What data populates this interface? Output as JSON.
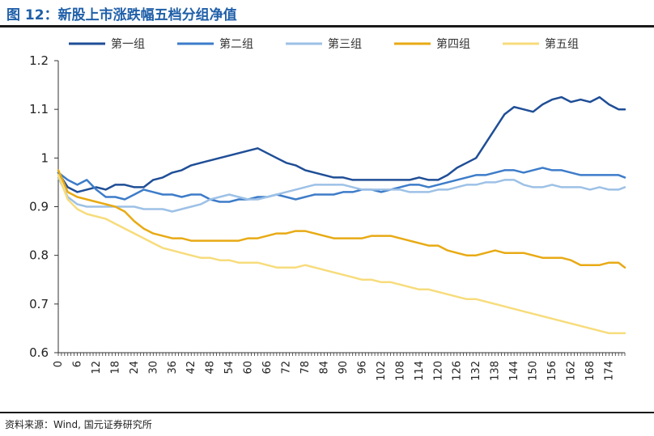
{
  "header": {
    "title": "图 12：新股上市涨跌幅五档分组净值"
  },
  "footer": {
    "source": "资料来源：Wind, 国元证券研究所"
  },
  "chart_data": {
    "type": "line",
    "title": "图 12：新股上市涨跌幅五档分组净值",
    "xlabel": "",
    "ylabel": "",
    "xlim": [
      0,
      179
    ],
    "ylim": [
      0.6,
      1.2
    ],
    "y_ticks": [
      0.6,
      0.7,
      0.8,
      0.9,
      1.0,
      1.1,
      1.2
    ],
    "y_tick_labels": [
      "0.6",
      "0.7",
      "0.8",
      "0.9",
      "1",
      "1.1",
      "1.2"
    ],
    "x_ticks": [
      0,
      6,
      12,
      18,
      24,
      30,
      36,
      42,
      48,
      54,
      60,
      66,
      72,
      78,
      84,
      90,
      96,
      102,
      108,
      114,
      120,
      126,
      132,
      138,
      144,
      150,
      156,
      162,
      168,
      174
    ],
    "x_tick_labels": [
      "0",
      "6",
      "12",
      "18",
      "24",
      "30",
      "36",
      "42",
      "48",
      "54",
      "60",
      "66",
      "72",
      "78",
      "84",
      "90",
      "96",
      "102",
      "108",
      "114",
      "120",
      "126",
      "132",
      "138",
      "144",
      "150",
      "156",
      "162",
      "168",
      "174"
    ],
    "legend_position": "top",
    "grid": false,
    "series": [
      {
        "name": "第一组",
        "color": "#1f4e96",
        "x": [
          0,
          3,
          6,
          9,
          12,
          15,
          18,
          21,
          24,
          27,
          30,
          33,
          36,
          39,
          42,
          45,
          48,
          51,
          54,
          57,
          60,
          63,
          66,
          69,
          72,
          75,
          78,
          81,
          84,
          87,
          90,
          93,
          96,
          99,
          102,
          105,
          108,
          111,
          114,
          117,
          120,
          123,
          126,
          129,
          132,
          135,
          138,
          141,
          144,
          147,
          150,
          153,
          156,
          159,
          162,
          165,
          168,
          171,
          174,
          177,
          179
        ],
        "values": [
          0.97,
          0.94,
          0.93,
          0.935,
          0.94,
          0.935,
          0.945,
          0.945,
          0.94,
          0.94,
          0.955,
          0.96,
          0.97,
          0.975,
          0.985,
          0.99,
          0.995,
          1.0,
          1.005,
          1.01,
          1.015,
          1.02,
          1.01,
          1.0,
          0.99,
          0.985,
          0.975,
          0.97,
          0.965,
          0.96,
          0.96,
          0.955,
          0.955,
          0.955,
          0.955,
          0.955,
          0.955,
          0.955,
          0.96,
          0.955,
          0.955,
          0.965,
          0.98,
          0.99,
          1.0,
          1.03,
          1.06,
          1.09,
          1.105,
          1.1,
          1.095,
          1.11,
          1.12,
          1.125,
          1.115,
          1.12,
          1.115,
          1.125,
          1.11,
          1.1,
          1.1
        ]
      },
      {
        "name": "第二组",
        "color": "#3d7cc9",
        "x": [
          0,
          3,
          6,
          9,
          12,
          15,
          18,
          21,
          24,
          27,
          30,
          33,
          36,
          39,
          42,
          45,
          48,
          51,
          54,
          57,
          60,
          63,
          66,
          69,
          72,
          75,
          78,
          81,
          84,
          87,
          90,
          93,
          96,
          99,
          102,
          105,
          108,
          111,
          114,
          117,
          120,
          123,
          126,
          129,
          132,
          135,
          138,
          141,
          144,
          147,
          150,
          153,
          156,
          159,
          162,
          165,
          168,
          171,
          174,
          177,
          179
        ],
        "values": [
          0.97,
          0.955,
          0.945,
          0.955,
          0.935,
          0.92,
          0.92,
          0.915,
          0.925,
          0.935,
          0.93,
          0.925,
          0.925,
          0.92,
          0.925,
          0.925,
          0.915,
          0.91,
          0.91,
          0.915,
          0.915,
          0.92,
          0.92,
          0.925,
          0.92,
          0.915,
          0.92,
          0.925,
          0.925,
          0.925,
          0.93,
          0.93,
          0.935,
          0.935,
          0.93,
          0.935,
          0.94,
          0.945,
          0.945,
          0.94,
          0.945,
          0.95,
          0.955,
          0.96,
          0.965,
          0.965,
          0.97,
          0.975,
          0.975,
          0.97,
          0.975,
          0.98,
          0.975,
          0.975,
          0.97,
          0.965,
          0.965,
          0.965,
          0.965,
          0.965,
          0.96
        ]
      },
      {
        "name": "第三组",
        "color": "#9dc1e6",
        "x": [
          0,
          3,
          6,
          9,
          12,
          15,
          18,
          21,
          24,
          27,
          30,
          33,
          36,
          39,
          42,
          45,
          48,
          51,
          54,
          57,
          60,
          63,
          66,
          69,
          72,
          75,
          78,
          81,
          84,
          87,
          90,
          93,
          96,
          99,
          102,
          105,
          108,
          111,
          114,
          117,
          120,
          123,
          126,
          129,
          132,
          135,
          138,
          141,
          144,
          147,
          150,
          153,
          156,
          159,
          162,
          165,
          168,
          171,
          174,
          177,
          179
        ],
        "values": [
          0.96,
          0.92,
          0.905,
          0.9,
          0.9,
          0.9,
          0.9,
          0.9,
          0.9,
          0.895,
          0.895,
          0.895,
          0.89,
          0.895,
          0.9,
          0.905,
          0.915,
          0.92,
          0.925,
          0.92,
          0.915,
          0.915,
          0.92,
          0.925,
          0.93,
          0.935,
          0.94,
          0.945,
          0.945,
          0.945,
          0.945,
          0.94,
          0.935,
          0.935,
          0.935,
          0.935,
          0.935,
          0.93,
          0.93,
          0.93,
          0.935,
          0.935,
          0.94,
          0.945,
          0.945,
          0.95,
          0.95,
          0.955,
          0.955,
          0.945,
          0.94,
          0.94,
          0.945,
          0.94,
          0.94,
          0.94,
          0.935,
          0.94,
          0.935,
          0.935,
          0.94
        ]
      },
      {
        "name": "第四组",
        "color": "#e8aa14",
        "x": [
          0,
          3,
          6,
          9,
          12,
          15,
          18,
          21,
          24,
          27,
          30,
          33,
          36,
          39,
          42,
          45,
          48,
          51,
          54,
          57,
          60,
          63,
          66,
          69,
          72,
          75,
          78,
          81,
          84,
          87,
          90,
          93,
          96,
          99,
          102,
          105,
          108,
          111,
          114,
          117,
          120,
          123,
          126,
          129,
          132,
          135,
          138,
          141,
          144,
          147,
          150,
          153,
          156,
          159,
          162,
          165,
          168,
          171,
          174,
          177,
          179
        ],
        "values": [
          0.975,
          0.93,
          0.92,
          0.915,
          0.91,
          0.905,
          0.9,
          0.89,
          0.87,
          0.855,
          0.845,
          0.84,
          0.835,
          0.835,
          0.83,
          0.83,
          0.83,
          0.83,
          0.83,
          0.83,
          0.835,
          0.835,
          0.84,
          0.845,
          0.845,
          0.85,
          0.85,
          0.845,
          0.84,
          0.835,
          0.835,
          0.835,
          0.835,
          0.84,
          0.84,
          0.84,
          0.835,
          0.83,
          0.825,
          0.82,
          0.82,
          0.81,
          0.805,
          0.8,
          0.8,
          0.805,
          0.81,
          0.805,
          0.805,
          0.805,
          0.8,
          0.795,
          0.795,
          0.795,
          0.79,
          0.78,
          0.78,
          0.78,
          0.785,
          0.785,
          0.775
        ]
      },
      {
        "name": "第五组",
        "color": "#f7dc7c",
        "x": [
          0,
          3,
          6,
          9,
          12,
          15,
          18,
          21,
          24,
          27,
          30,
          33,
          36,
          39,
          42,
          45,
          48,
          51,
          54,
          57,
          60,
          63,
          66,
          69,
          72,
          75,
          78,
          81,
          84,
          87,
          90,
          93,
          96,
          99,
          102,
          105,
          108,
          111,
          114,
          117,
          120,
          123,
          126,
          129,
          132,
          135,
          138,
          141,
          144,
          147,
          150,
          153,
          156,
          159,
          162,
          165,
          168,
          171,
          174,
          177,
          179
        ],
        "values": [
          0.965,
          0.915,
          0.895,
          0.885,
          0.88,
          0.875,
          0.865,
          0.855,
          0.845,
          0.835,
          0.825,
          0.815,
          0.81,
          0.805,
          0.8,
          0.795,
          0.795,
          0.79,
          0.79,
          0.785,
          0.785,
          0.785,
          0.78,
          0.775,
          0.775,
          0.775,
          0.78,
          0.775,
          0.77,
          0.765,
          0.76,
          0.755,
          0.75,
          0.75,
          0.745,
          0.745,
          0.74,
          0.735,
          0.73,
          0.73,
          0.725,
          0.72,
          0.715,
          0.71,
          0.71,
          0.705,
          0.7,
          0.695,
          0.69,
          0.685,
          0.68,
          0.675,
          0.67,
          0.665,
          0.66,
          0.655,
          0.65,
          0.645,
          0.64,
          0.64,
          0.64
        ]
      }
    ]
  }
}
